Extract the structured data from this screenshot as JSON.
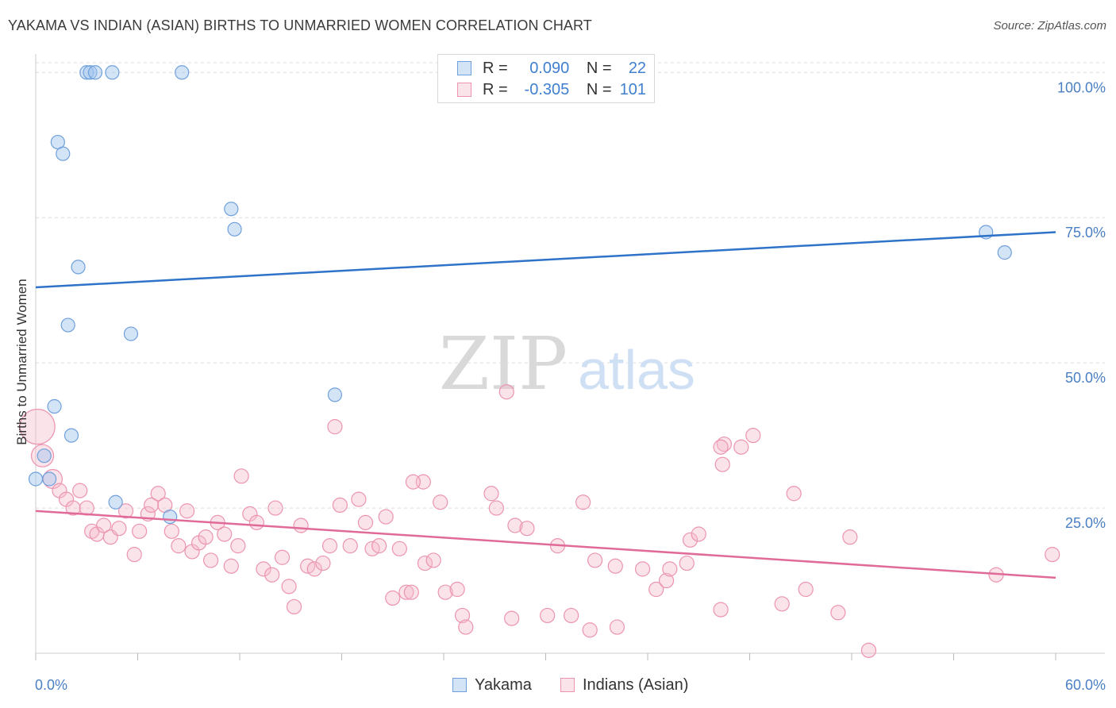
{
  "header": {
    "title": "YAKAMA VS INDIAN (ASIAN) BIRTHS TO UNMARRIED WOMEN CORRELATION CHART",
    "source": "Source: ZipAtlas.com"
  },
  "watermark": {
    "zip": "ZIP",
    "atlas": "atlas"
  },
  "legend": {
    "rows": [
      {
        "r_label": "R =",
        "r_value": "0.090",
        "n_label": "N =",
        "n_value": "22",
        "color": "#9fc3ee"
      },
      {
        "r_label": "R =",
        "r_value": "-0.305",
        "n_label": "N =",
        "n_value": "101",
        "color": "#f5b8cb"
      }
    ]
  },
  "bottom_legend": {
    "series1": "Yakama",
    "series2": "Indians (Asian)"
  },
  "colors": {
    "yakama_fill": "rgba(160,196,238,0.45)",
    "yakama_stroke": "#6fa0dc",
    "yakama_line": "#2f73c9",
    "indian_fill": "rgba(245,184,203,0.40)",
    "indian_stroke": "#ec94b0",
    "indian_line": "#e06b98",
    "axis_text": "#4a7fc4",
    "grid": "#dcdcdc"
  },
  "chart_data": {
    "type": "scatter",
    "title": "YAKAMA VS INDIAN (ASIAN) BIRTHS TO UNMARRIED WOMEN CORRELATION CHART",
    "xlabel": "",
    "ylabel": "Births to Unmarried Women",
    "xlim": [
      0,
      60
    ],
    "ylim": [
      0,
      104
    ],
    "x_tick_labels": [
      "0.0%",
      "60.0%"
    ],
    "y_ticks": [
      25,
      50,
      75,
      100
    ],
    "y_tick_labels": [
      "25.0%",
      "50.0%",
      "75.0%",
      "100.0%"
    ],
    "grid": true,
    "legend_position": "top-center",
    "series": [
      {
        "name": "Yakama",
        "points": [
          [
            3.0,
            100
          ],
          [
            3.2,
            100
          ],
          [
            3.5,
            100
          ],
          [
            4.5,
            100
          ],
          [
            8.6,
            100
          ],
          [
            1.3,
            88
          ],
          [
            1.6,
            86
          ],
          [
            11.5,
            76.5
          ],
          [
            11.7,
            73
          ],
          [
            2.5,
            66.5
          ],
          [
            1.9,
            56.5
          ],
          [
            5.6,
            55
          ],
          [
            17.6,
            44.5
          ],
          [
            1.1,
            42.5
          ],
          [
            2.1,
            37.5
          ],
          [
            0.5,
            34
          ],
          [
            0.0,
            30
          ],
          [
            0.8,
            30
          ],
          [
            4.7,
            26
          ],
          [
            7.9,
            23.5
          ],
          [
            55.9,
            72.5
          ],
          [
            57.0,
            69
          ]
        ],
        "trend": {
          "x": [
            0,
            60
          ],
          "y": [
            63,
            72.5
          ]
        }
      },
      {
        "name": "Indians (Asian)",
        "points": [
          [
            0.1,
            39
          ],
          [
            0.4,
            34
          ],
          [
            1.0,
            30
          ],
          [
            1.4,
            28
          ],
          [
            1.8,
            26.5
          ],
          [
            2.2,
            25
          ],
          [
            2.6,
            28
          ],
          [
            3.0,
            25
          ],
          [
            3.3,
            21
          ],
          [
            3.6,
            20.5
          ],
          [
            4.0,
            22
          ],
          [
            4.4,
            20
          ],
          [
            4.9,
            21.5
          ],
          [
            5.3,
            24.5
          ],
          [
            5.8,
            17
          ],
          [
            6.1,
            21
          ],
          [
            6.6,
            24
          ],
          [
            6.8,
            25.5
          ],
          [
            7.2,
            27.5
          ],
          [
            7.6,
            25.5
          ],
          [
            8.0,
            21
          ],
          [
            8.4,
            18.5
          ],
          [
            8.9,
            24.5
          ],
          [
            9.2,
            17.5
          ],
          [
            9.6,
            19
          ],
          [
            10.0,
            20
          ],
          [
            10.3,
            16
          ],
          [
            10.7,
            22.5
          ],
          [
            11.1,
            20.5
          ],
          [
            11.5,
            15
          ],
          [
            11.9,
            18.5
          ],
          [
            12.1,
            30.5
          ],
          [
            12.6,
            24
          ],
          [
            13.0,
            22.5
          ],
          [
            13.4,
            14.5
          ],
          [
            13.9,
            13.5
          ],
          [
            14.1,
            25
          ],
          [
            14.5,
            16.5
          ],
          [
            14.9,
            11.5
          ],
          [
            15.2,
            8
          ],
          [
            15.6,
            22
          ],
          [
            16.0,
            15
          ],
          [
            16.4,
            14.5
          ],
          [
            16.9,
            15.5
          ],
          [
            17.3,
            18.5
          ],
          [
            17.6,
            39
          ],
          [
            17.9,
            25.5
          ],
          [
            18.5,
            18.5
          ],
          [
            19.0,
            26.5
          ],
          [
            19.4,
            22.5
          ],
          [
            19.8,
            18
          ],
          [
            20.2,
            18.5
          ],
          [
            20.6,
            23.5
          ],
          [
            21.0,
            9.5
          ],
          [
            21.4,
            18
          ],
          [
            21.8,
            10.5
          ],
          [
            22.1,
            10.5
          ],
          [
            22.8,
            29.5
          ],
          [
            22.9,
            15.5
          ],
          [
            23.4,
            16
          ],
          [
            23.8,
            26
          ],
          [
            24.1,
            10.5
          ],
          [
            25.1,
            6.5
          ],
          [
            25.3,
            4.5
          ],
          [
            26.8,
            27.5
          ],
          [
            27.1,
            25
          ],
          [
            27.7,
            45
          ],
          [
            28.2,
            22
          ],
          [
            28.0,
            6
          ],
          [
            28.9,
            21.5
          ],
          [
            30.1,
            6.5
          ],
          [
            30.7,
            18.5
          ],
          [
            31.5,
            6.5
          ],
          [
            32.2,
            26
          ],
          [
            32.6,
            4
          ],
          [
            32.9,
            16
          ],
          [
            34.1,
            15
          ],
          [
            34.2,
            4.5
          ],
          [
            35.7,
            14.5
          ],
          [
            36.5,
            11
          ],
          [
            37.1,
            12.5
          ],
          [
            37.3,
            14.5
          ],
          [
            38.3,
            15.5
          ],
          [
            38.5,
            19.5
          ],
          [
            39.0,
            20.5
          ],
          [
            40.3,
            7.5
          ],
          [
            40.4,
            32.5
          ],
          [
            40.5,
            36
          ],
          [
            41.5,
            35.5
          ],
          [
            42.2,
            37.5
          ],
          [
            43.9,
            8.5
          ],
          [
            44.6,
            27.5
          ],
          [
            45.3,
            11
          ],
          [
            47.2,
            7
          ],
          [
            47.9,
            20
          ],
          [
            49.0,
            0.5
          ],
          [
            56.5,
            13.5
          ],
          [
            59.8,
            17
          ],
          [
            40.3,
            35.5
          ],
          [
            22.2,
            29.5
          ],
          [
            24.8,
            11
          ]
        ],
        "trend": {
          "x": [
            0,
            60
          ],
          "y": [
            24.5,
            13
          ]
        }
      }
    ]
  }
}
